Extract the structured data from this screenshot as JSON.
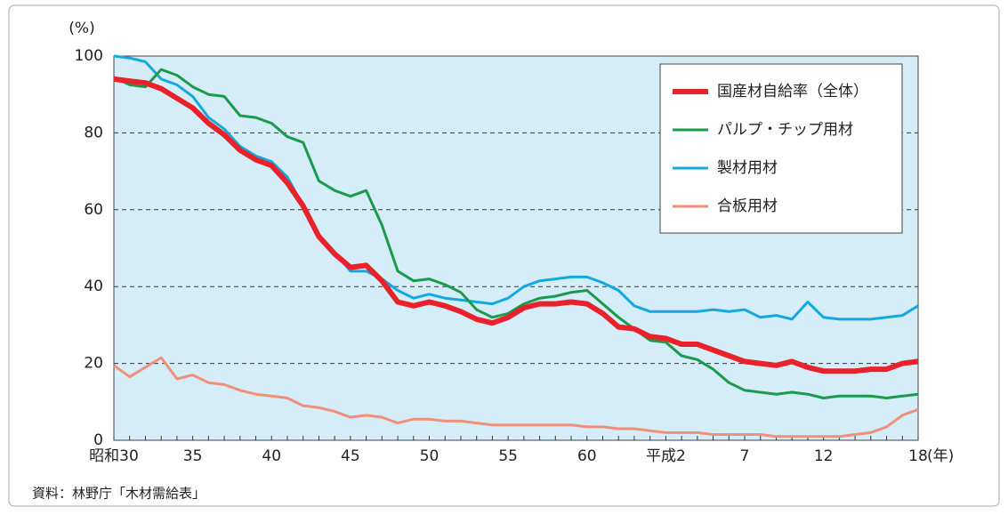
{
  "chart_data": {
    "type": "line",
    "y_unit": "(%)",
    "x_unit": "(年)",
    "source": "資料：林野庁「木材需給表」",
    "categories": [
      "昭和30",
      null,
      null,
      null,
      null,
      "35",
      null,
      null,
      null,
      null,
      "40",
      null,
      null,
      null,
      null,
      "45",
      null,
      null,
      null,
      null,
      "50",
      null,
      null,
      null,
      null,
      "55",
      null,
      null,
      null,
      null,
      "60",
      null,
      null,
      null,
      null,
      "平成2",
      null,
      null,
      null,
      null,
      "7",
      null,
      null,
      null,
      null,
      "12",
      null,
      null,
      null,
      null,
      null,
      "18"
    ],
    "ylim": [
      0,
      100
    ],
    "yticks": [
      0,
      20,
      40,
      60,
      80,
      100
    ],
    "grid": true,
    "legend": "upper right",
    "series": [
      {
        "name": "国産材自給率（全体）",
        "color": "#e8212a",
        "values": [
          94,
          93.5,
          93,
          91.5,
          89,
          86.5,
          82.5,
          79.5,
          75.5,
          73,
          71.5,
          67,
          61,
          53,
          48.5,
          45,
          45.5,
          41.5,
          36,
          35,
          36,
          35,
          33.5,
          31.5,
          30.5,
          32,
          34.5,
          35.5,
          35.5,
          36,
          35.5,
          33,
          29.5,
          29,
          27,
          26.5,
          25,
          25,
          23.5,
          22,
          20.5,
          20,
          19.5,
          20.5,
          19,
          18,
          18,
          18,
          18.5,
          18.5,
          20,
          20.5
        ]
      },
      {
        "name": "パルプ・チップ用材",
        "color": "#1a9a4a",
        "values": [
          94.5,
          92.5,
          92,
          96.5,
          95,
          92,
          90,
          89.5,
          84.5,
          84,
          82.5,
          79,
          77.5,
          67.5,
          65,
          63.5,
          65,
          56,
          44,
          41.5,
          42,
          40.5,
          38.5,
          34,
          32,
          33,
          35.5,
          37,
          37.5,
          38.5,
          39,
          35.5,
          32,
          29,
          26,
          25.5,
          22,
          21,
          18.5,
          15,
          13,
          12.5,
          12,
          12.5,
          12,
          11,
          11.5,
          11.5,
          11.5,
          11,
          11.5,
          12
        ]
      },
      {
        "name": "製材用材",
        "color": "#14a8e0",
        "values": [
          100,
          99.5,
          98.5,
          94,
          92.5,
          89.5,
          84,
          81,
          76.5,
          74,
          72.5,
          68.5,
          61,
          53.5,
          49,
          44,
          44,
          42,
          39,
          37,
          38,
          37,
          36.5,
          36,
          35.5,
          37,
          40,
          41.5,
          42,
          42.5,
          42.5,
          41,
          39,
          35,
          33.5,
          33.5,
          33.5,
          33.5,
          34,
          33.5,
          34,
          32,
          32.5,
          31.5,
          36,
          32,
          31.5,
          31.5,
          31.5,
          32,
          32.5,
          35
        ]
      },
      {
        "name": "合板用材",
        "color": "#f0907a",
        "values": [
          19.5,
          16.5,
          19,
          21.5,
          16,
          17,
          15,
          14.5,
          13,
          12,
          11.5,
          11,
          9,
          8.5,
          7.5,
          6,
          6.5,
          6,
          4.5,
          5.5,
          5.5,
          5,
          5,
          4.5,
          4,
          4,
          4,
          4,
          4,
          4,
          3.5,
          3.5,
          3,
          3,
          2.5,
          2,
          2,
          2,
          1.5,
          1.5,
          1.5,
          1.5,
          1,
          1,
          1,
          1,
          1,
          1.5,
          2,
          3.5,
          6.5,
          8
        ]
      }
    ]
  }
}
